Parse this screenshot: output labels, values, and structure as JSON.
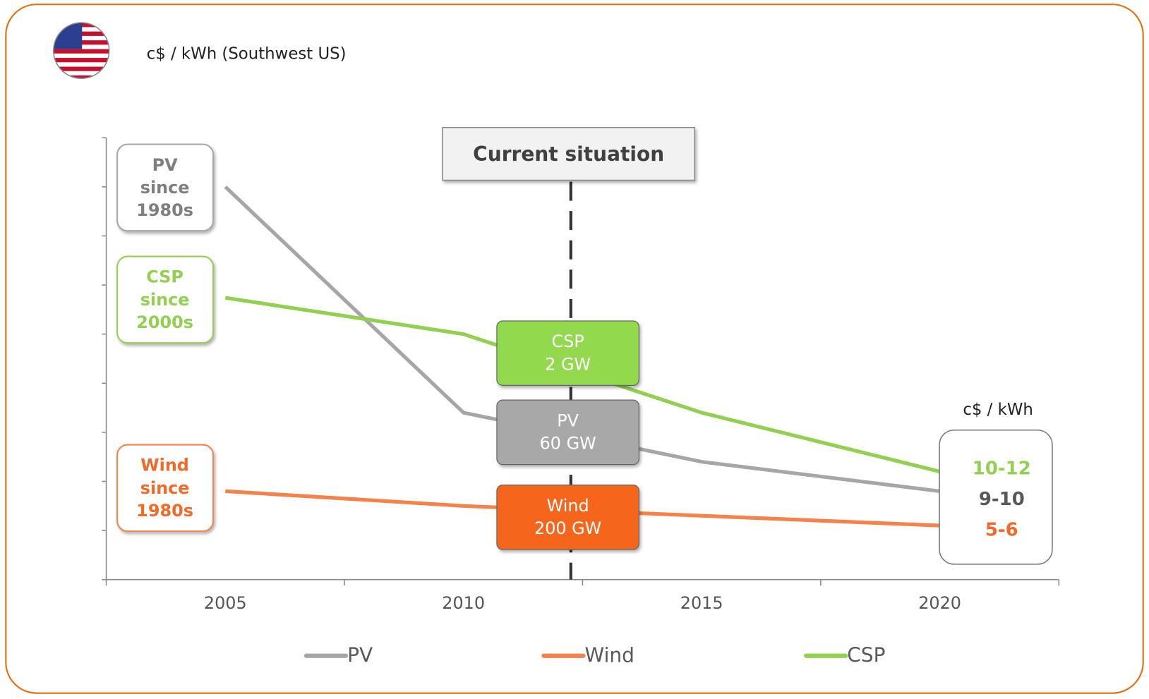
{
  "chart_data": {
    "type": "line",
    "subtitle": "c$ / kWh  (Southwest US)",
    "categories": [
      "2005",
      "2010",
      "2015",
      "2020"
    ],
    "series": [
      {
        "name": "PV",
        "color": "#a6a6a6",
        "values": [
          40,
          17,
          12,
          9
        ]
      },
      {
        "name": "Wind",
        "color": "#f5824a",
        "values": [
          9,
          7.5,
          6.5,
          5.5
        ]
      },
      {
        "name": "CSP",
        "color": "#92d050",
        "values": [
          28.7,
          25,
          17,
          11
        ]
      }
    ],
    "ylim": [
      0,
      45
    ],
    "yticks": [
      0,
      5,
      10,
      15,
      20,
      25,
      30,
      35,
      40,
      45
    ],
    "legend": "bottom",
    "current_label": "Current situation",
    "side_notes": [
      {
        "lines": [
          "PV",
          "since",
          "1980s"
        ]
      },
      {
        "lines": [
          "CSP",
          "since",
          "2000s"
        ]
      },
      {
        "lines": [
          "Wind",
          "since",
          "1980s"
        ]
      }
    ],
    "capacity_labels": [
      {
        "lines": [
          "CSP",
          "2 GW"
        ]
      },
      {
        "lines": [
          "PV",
          "60 GW"
        ]
      },
      {
        "lines": [
          "Wind",
          "200 GW"
        ]
      }
    ],
    "end_box": {
      "title": "c$ / kWh",
      "values": [
        "10-12",
        "9-10",
        "5-6"
      ]
    }
  }
}
